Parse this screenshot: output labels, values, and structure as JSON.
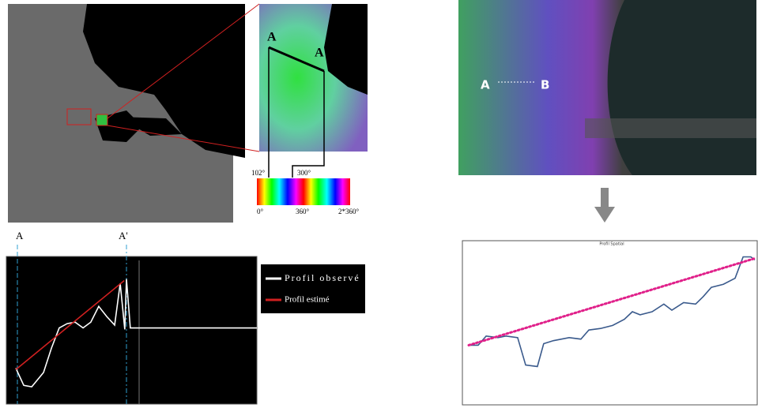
{
  "figure": {
    "zoom_labels": [
      "A",
      "A'"
    ],
    "color_scale": {
      "top": [
        "102°",
        "300°"
      ],
      "bottom": [
        "0°",
        "360°",
        "2*360°"
      ]
    },
    "profile_labels": [
      "A",
      "A'"
    ],
    "transect_labels": [
      "A",
      "B"
    ]
  },
  "chart_data": [
    {
      "type": "line",
      "background": "#000000",
      "xlim": [
        0,
        100
      ],
      "ylim": [
        0,
        100
      ],
      "series": [
        {
          "name": "Profil observé",
          "color": "#ffffff",
          "style": "solid",
          "x": [
            0,
            3.3,
            6.6,
            11.5,
            14.8,
            18,
            21.3,
            24.6,
            27.9,
            31.1,
            34.4,
            37.7,
            41,
            43.3,
            45.2,
            45.9,
            47.5,
            100
          ],
          "values": [
            25,
            13,
            12,
            22,
            39,
            53,
            56,
            57,
            53,
            57,
            68,
            61,
            55,
            84,
            52,
            87,
            53,
            53
          ]
        },
        {
          "name": "Profil estimé",
          "color": "#d02020",
          "style": "solid",
          "x": [
            0,
            45
          ],
          "values": [
            24,
            86
          ]
        }
      ]
    },
    {
      "type": "line",
      "title": "Profil Spatial",
      "background": "#ffffff",
      "xlim": [
        0,
        100
      ],
      "ylim": [
        0,
        100
      ],
      "series": [
        {
          "color": "#3a5a8c",
          "style": "solid",
          "x": [
            0,
            3.3,
            6.1,
            10.2,
            13,
            17.1,
            19.9,
            24,
            26.2,
            29.6,
            35.1,
            39.2,
            42,
            46.1,
            50.3,
            54.4,
            57.2,
            59.9,
            64.1,
            68.2,
            71,
            75.1,
            79.3,
            82,
            84.8,
            89,
            93.1,
            95.9,
            98.6,
            100
          ],
          "values": [
            35,
            35,
            41,
            40,
            41,
            40,
            22,
            21,
            36,
            38,
            40,
            39,
            45,
            46,
            48,
            52,
            57,
            55,
            57,
            62,
            58,
            63,
            62,
            67,
            73,
            75,
            79,
            93,
            93,
            91
          ]
        },
        {
          "color": "#e0208a",
          "style": "dotted",
          "x": [
            0,
            100
          ],
          "values": [
            35,
            92
          ]
        }
      ]
    }
  ]
}
